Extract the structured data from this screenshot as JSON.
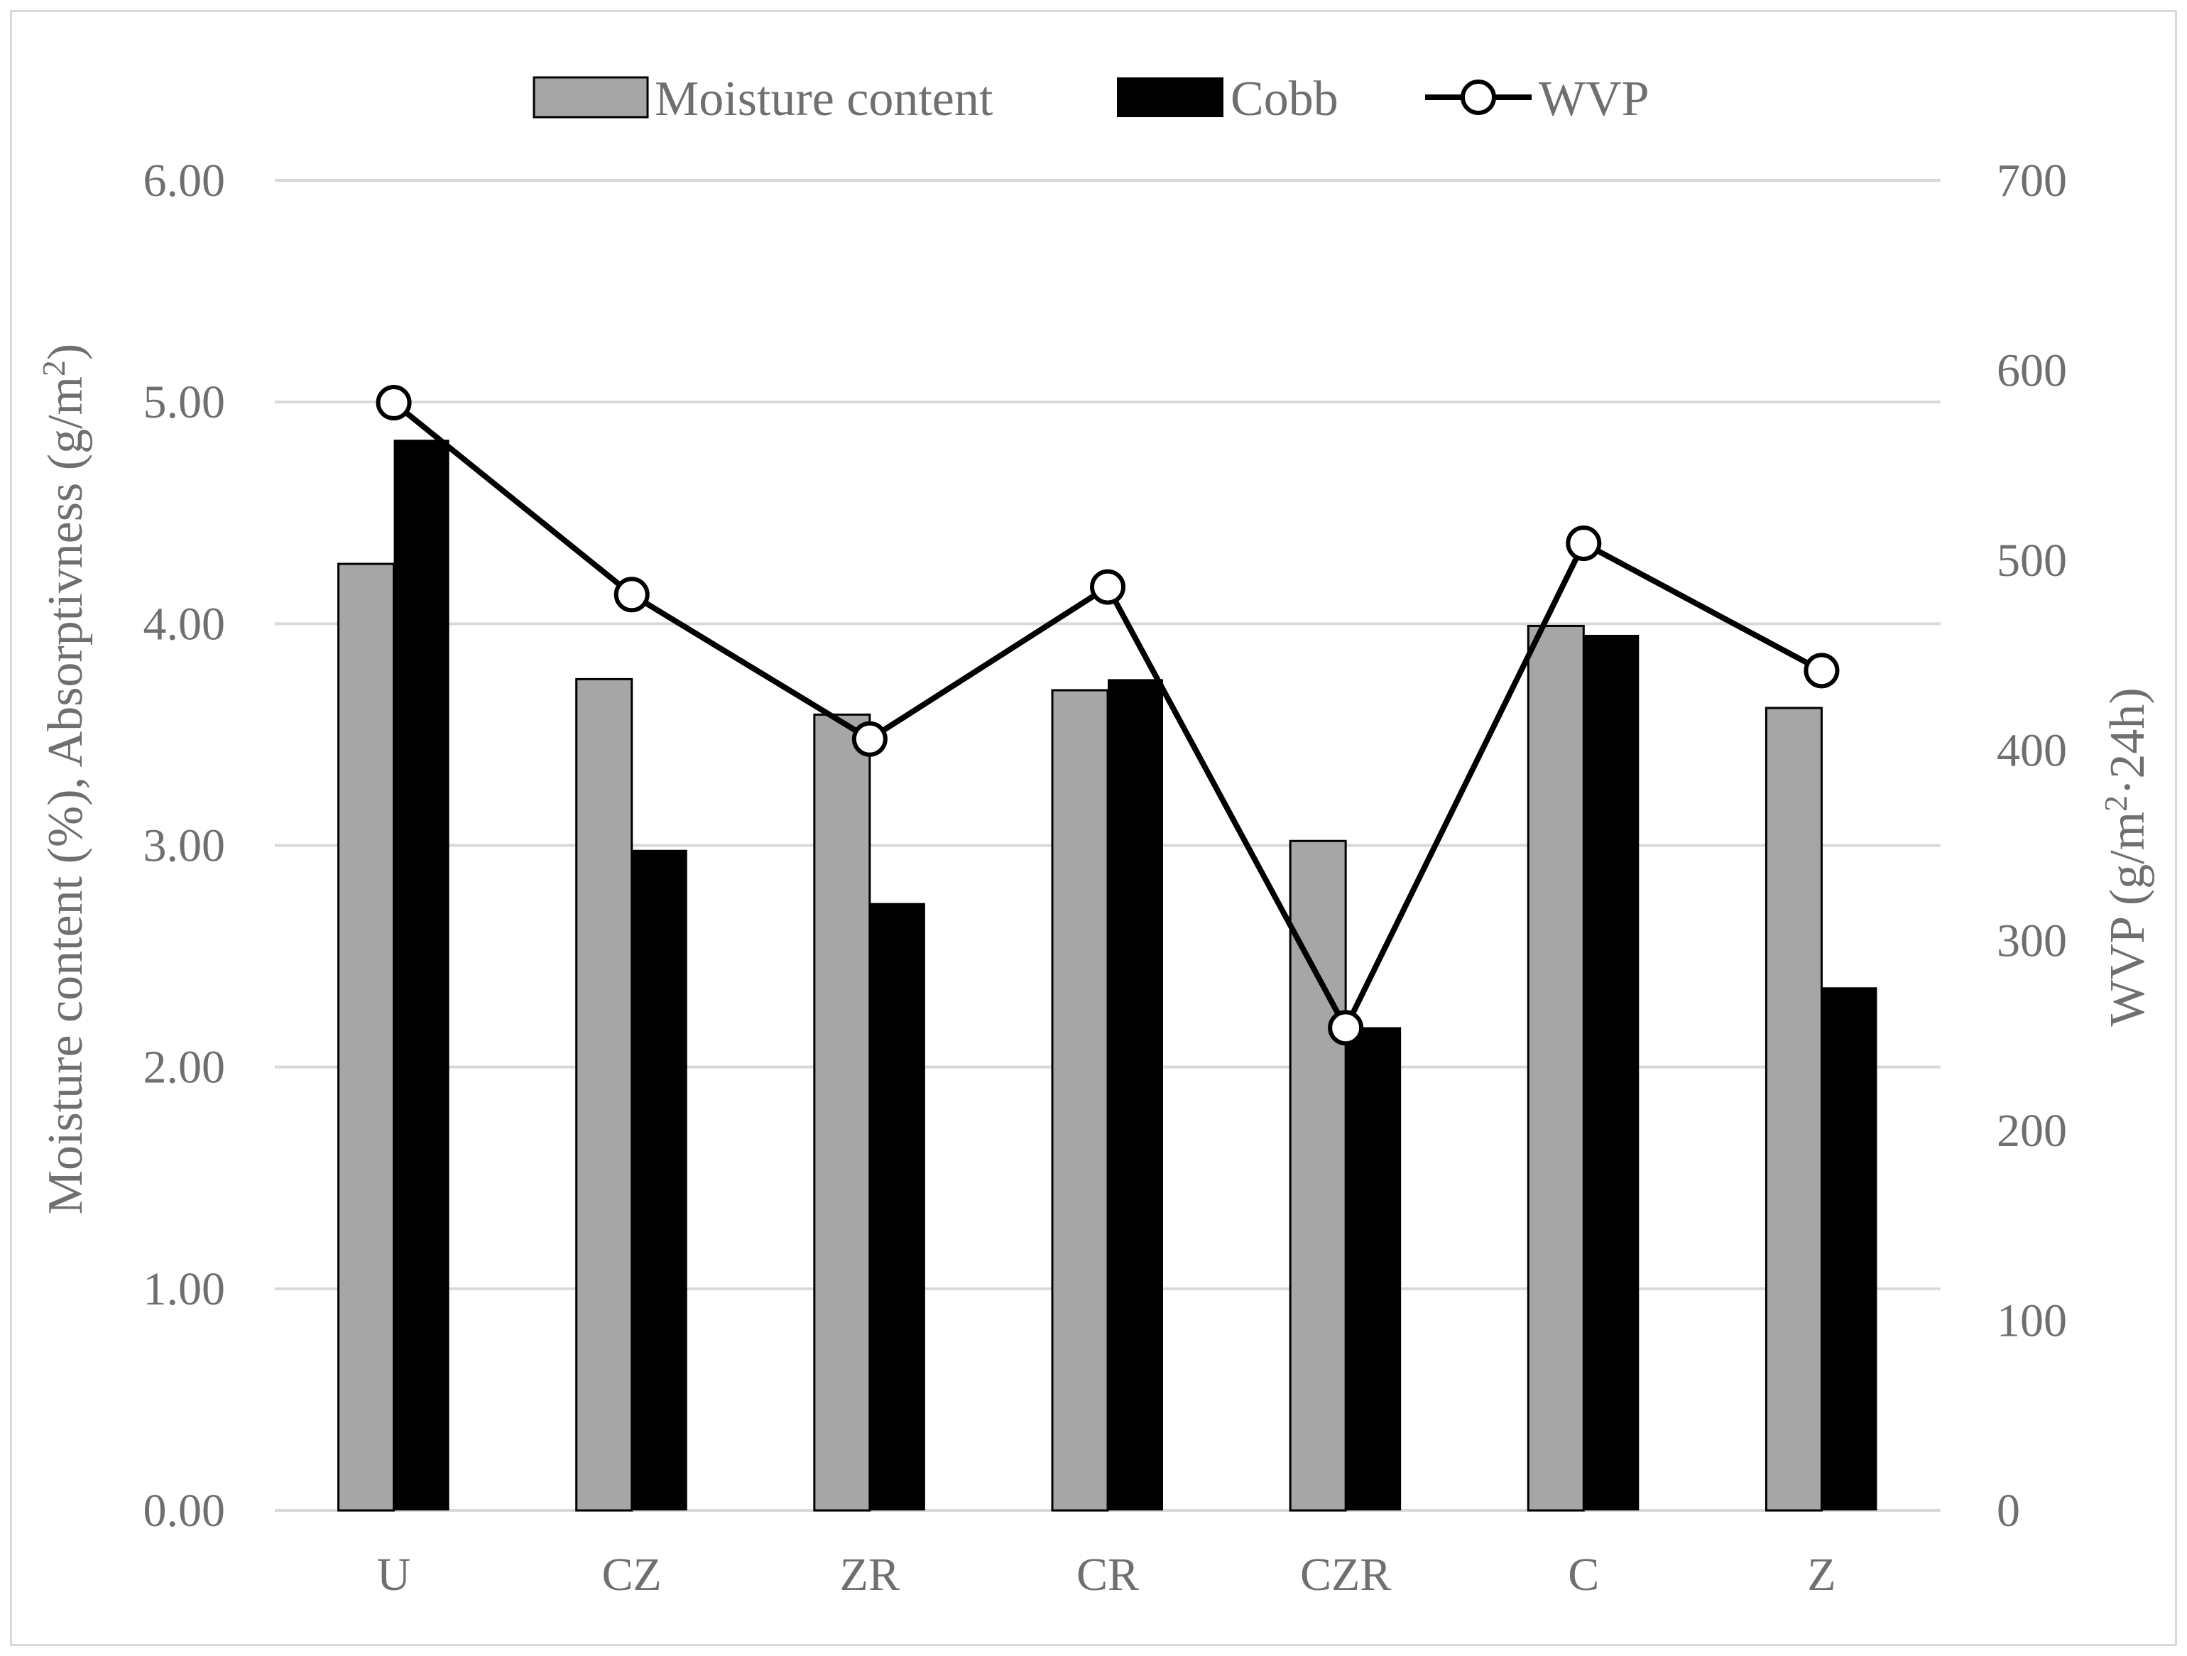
{
  "chart_data": {
    "type": "bar",
    "categories": [
      "U",
      "CZ",
      "ZR",
      "CR",
      "CZR",
      "C",
      "Z"
    ],
    "series": [
      {
        "name": "Moisture content",
        "kind": "bar",
        "axis": "left",
        "color": "#a6a6a6",
        "values": [
          4.27,
          3.75,
          3.59,
          3.7,
          3.02,
          3.99,
          3.62
        ]
      },
      {
        "name": "Cobb",
        "kind": "bar",
        "axis": "left",
        "color": "#000000",
        "values": [
          4.83,
          2.98,
          2.74,
          3.75,
          2.18,
          3.95,
          2.36
        ]
      },
      {
        "name": "WVP",
        "kind": "line",
        "axis": "right",
        "color": "#000000",
        "values": [
          583,
          482,
          406,
          486,
          254,
          509,
          442
        ]
      }
    ],
    "ylabel": "Moisture content (%), Absorptivness (g/m²)",
    "ylabel_parts": [
      "Moisture content (%), Absorptivness (g/m",
      "2",
      ")"
    ],
    "ylim": [
      0,
      6
    ],
    "yticks": [
      "0.00",
      "1.00",
      "2.00",
      "3.00",
      "4.00",
      "5.00",
      "6.00"
    ],
    "y2label": "WVP (g/m²·24h)",
    "y2label_parts": [
      "WVP (g/m",
      "2",
      "·24h)"
    ],
    "y2lim": [
      0,
      700
    ],
    "y2ticks": [
      "0",
      "100",
      "200",
      "300",
      "400",
      "500",
      "600",
      "700"
    ],
    "legend": [
      "Moisture content",
      "Cobb",
      "WVP"
    ],
    "legend_position": "top",
    "grid": true
  }
}
